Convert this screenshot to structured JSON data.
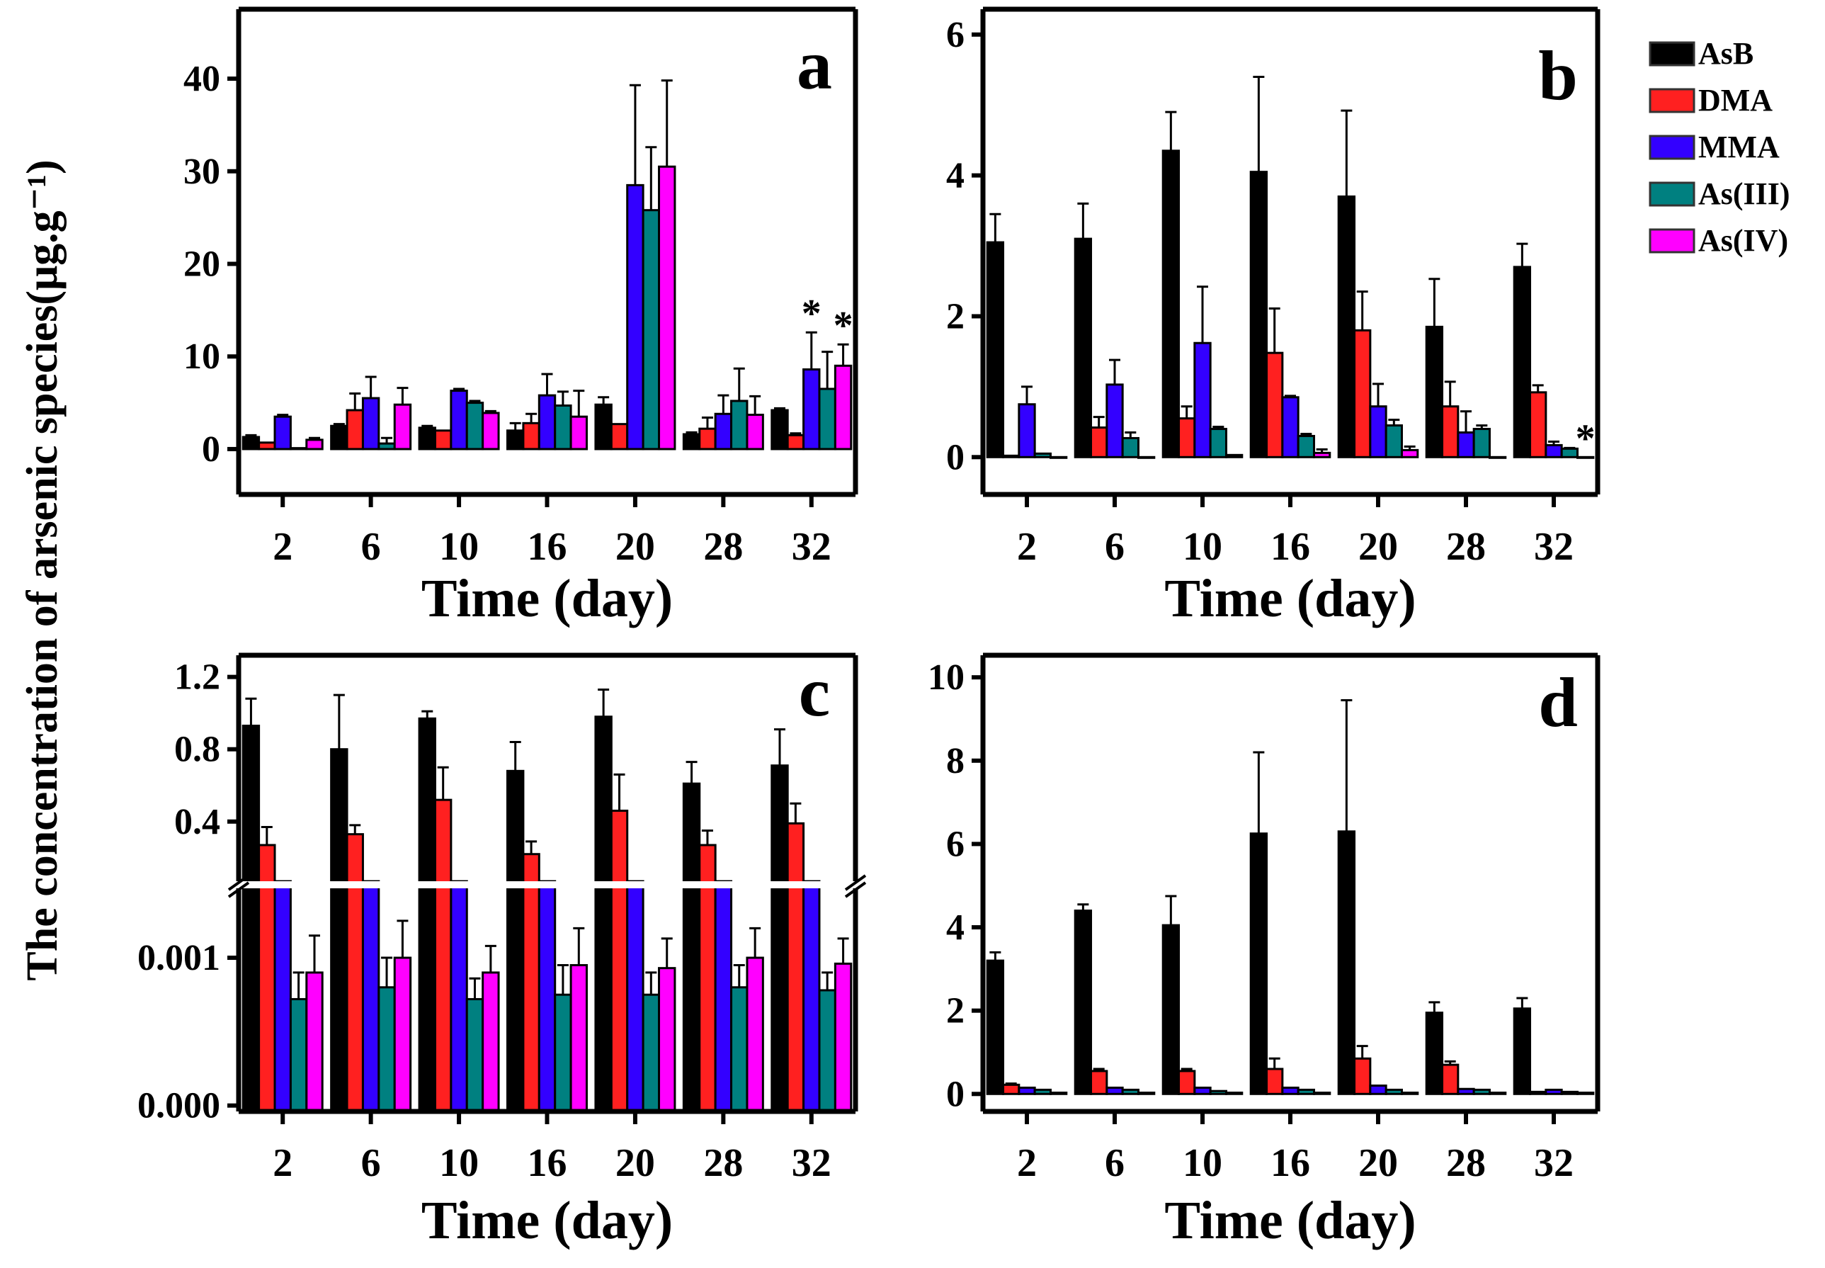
{
  "y_axis_label": "The concentration of arsenic species(μg.g⁻¹)",
  "colors": {
    "AsB": "#000000",
    "DMA": "#ff2020",
    "MMA": "#3300ff",
    "As(III)": "#008080",
    "As(IV)": "#ff00ff"
  },
  "legend": [
    "AsB",
    "DMA",
    "MMA",
    "As(III)",
    "As(IV)"
  ],
  "chart_data": [
    {
      "type": "bar",
      "panel": "a",
      "xlabel": "Time (day)",
      "ylim": [
        -4.9,
        47.5
      ],
      "yticks": [
        0,
        10,
        20,
        30,
        40
      ],
      "ytick_labels": [
        "0",
        "10",
        "20",
        "30",
        "40"
      ],
      "categories": [
        "2",
        "6",
        "10",
        "16",
        "20",
        "28",
        "32"
      ],
      "series": [
        {
          "name": "AsB",
          "values": [
            1.3,
            2.5,
            2.3,
            2.0,
            4.8,
            1.6,
            4.2
          ],
          "errors": [
            0.2,
            0.2,
            0.2,
            0.8,
            0.8,
            0.2,
            0.2
          ]
        },
        {
          "name": "DMA",
          "values": [
            0.7,
            4.2,
            2.0,
            2.8,
            2.7,
            2.2,
            1.5
          ],
          "errors": [
            0,
            1.8,
            0,
            1.0,
            0,
            1.2,
            0.2
          ]
        },
        {
          "name": "MMA",
          "values": [
            3.5,
            5.5,
            6.3,
            5.8,
            28.5,
            3.8,
            8.6
          ],
          "errors": [
            0.2,
            2.3,
            0.2,
            2.3,
            10.8,
            2.0,
            4.0
          ]
        },
        {
          "name": "As(III)",
          "values": [
            0.1,
            0.6,
            5.0,
            4.7,
            25.8,
            5.2,
            6.5
          ],
          "errors": [
            0,
            0.6,
            0.2,
            1.5,
            6.8,
            3.5,
            4.0
          ]
        },
        {
          "name": "As(IV)",
          "values": [
            1.0,
            4.8,
            3.9,
            3.5,
            30.5,
            3.7,
            9.0
          ],
          "errors": [
            0.2,
            1.8,
            0.2,
            2.8,
            9.3,
            2.0,
            2.3
          ]
        }
      ],
      "annotations": [
        {
          "text": "*",
          "category": "32",
          "series": "MMA"
        },
        {
          "text": "*",
          "category": "32",
          "series": "As(IV)"
        }
      ]
    },
    {
      "type": "bar",
      "panel": "b",
      "xlabel": "Time (day)",
      "ylim": [
        -0.53,
        6.36
      ],
      "yticks": [
        0,
        2,
        4,
        6
      ],
      "ytick_labels": [
        "0",
        "2",
        "4",
        "6"
      ],
      "categories": [
        "2",
        "6",
        "10",
        "16",
        "20",
        "28",
        "32"
      ],
      "series": [
        {
          "name": "AsB",
          "values": [
            3.05,
            3.1,
            4.35,
            4.05,
            3.7,
            1.85,
            2.7
          ],
          "errors": [
            0.4,
            0.5,
            0.55,
            1.35,
            1.22,
            0.68,
            0.33
          ]
        },
        {
          "name": "DMA",
          "values": [
            0.02,
            0.42,
            0.55,
            1.48,
            1.8,
            0.72,
            0.92
          ],
          "errors": [
            0,
            0.15,
            0.17,
            0.63,
            0.55,
            0.35,
            0.1
          ]
        },
        {
          "name": "MMA",
          "values": [
            0.75,
            1.03,
            1.62,
            0.85,
            0.72,
            0.35,
            0.17
          ],
          "errors": [
            0.25,
            0.35,
            0.8,
            0.02,
            0.32,
            0.3,
            0.05
          ]
        },
        {
          "name": "As(III)",
          "values": [
            0.05,
            0.27,
            0.4,
            0.3,
            0.45,
            0.4,
            0.12
          ],
          "errors": [
            0,
            0.08,
            0.03,
            0.03,
            0.08,
            0.05,
            0.01
          ]
        },
        {
          "name": "As(IV)",
          "values": [
            0.0,
            0.0,
            0.03,
            0.06,
            0.1,
            0.0,
            0.0
          ],
          "errors": [
            0,
            0,
            0,
            0.05,
            0.05,
            0,
            0
          ]
        }
      ],
      "annotations": [
        {
          "text": "*",
          "category": "32",
          "series": "As(IV)"
        }
      ]
    },
    {
      "type": "bar",
      "panel": "c",
      "xlabel": "Time (day)",
      "broken_axis": true,
      "ylim_lower": [
        -4e-05,
        0.00147
      ],
      "ylim_upper": [
        0.07,
        1.32
      ],
      "yticks": [
        0.0,
        0.001,
        0.4,
        0.8,
        1.2
      ],
      "ytick_labels": [
        "0.000",
        "0.001",
        "0.4",
        "0.8",
        "1.2"
      ],
      "categories": [
        "2",
        "6",
        "10",
        "16",
        "20",
        "28",
        "32"
      ],
      "series": [
        {
          "name": "AsB",
          "values": [
            0.93,
            0.8,
            0.97,
            0.68,
            0.98,
            0.61,
            0.71
          ],
          "errors": [
            0.15,
            0.3,
            0.04,
            0.16,
            0.15,
            0.12,
            0.2
          ]
        },
        {
          "name": "DMA",
          "values": [
            0.27,
            0.33,
            0.52,
            0.22,
            0.46,
            0.27,
            0.39
          ],
          "errors": [
            0.1,
            0.05,
            0.18,
            0.07,
            0.2,
            0.08,
            0.11
          ]
        },
        {
          "name": "MMA",
          "values": [
            0.01,
            0.01,
            0.01,
            0.01,
            0.01,
            0.01,
            0.01
          ],
          "errors": [
            0,
            0,
            0,
            0,
            0,
            0,
            0
          ]
        },
        {
          "name": "As(III)",
          "values": [
            0.00072,
            0.0008,
            0.00072,
            0.00075,
            0.00075,
            0.0008,
            0.00078
          ],
          "errors": [
            0.00018,
            0.0002,
            0.00014,
            0.0002,
            0.00015,
            0.00015,
            0.00012
          ]
        },
        {
          "name": "As(IV)",
          "values": [
            0.0009,
            0.001,
            0.0009,
            0.00095,
            0.00093,
            0.001,
            0.00096
          ],
          "errors": [
            0.00025,
            0.00025,
            0.00018,
            0.00025,
            0.0002,
            0.0002,
            0.00017
          ]
        }
      ],
      "annotations": []
    },
    {
      "type": "bar",
      "panel": "d",
      "xlabel": "Time (day)",
      "ylim": [
        -0.42,
        10.53
      ],
      "yticks": [
        0,
        2,
        4,
        6,
        8,
        10
      ],
      "ytick_labels": [
        "0",
        "2",
        "4",
        "6",
        "8",
        "10"
      ],
      "categories": [
        "2",
        "6",
        "10",
        "16",
        "20",
        "28",
        "32"
      ],
      "series": [
        {
          "name": "AsB",
          "values": [
            3.2,
            4.4,
            4.05,
            6.25,
            6.3,
            1.95,
            2.05
          ],
          "errors": [
            0.2,
            0.15,
            0.7,
            1.95,
            3.15,
            0.25,
            0.25
          ]
        },
        {
          "name": "DMA",
          "values": [
            0.22,
            0.55,
            0.55,
            0.6,
            0.85,
            0.7,
            0.05
          ],
          "errors": [
            0.03,
            0.05,
            0.05,
            0.25,
            0.3,
            0.08,
            0
          ]
        },
        {
          "name": "MMA",
          "values": [
            0.15,
            0.15,
            0.15,
            0.15,
            0.2,
            0.12,
            0.1
          ],
          "errors": [
            0,
            0,
            0,
            0,
            0,
            0,
            0
          ]
        },
        {
          "name": "As(III)",
          "values": [
            0.1,
            0.1,
            0.07,
            0.1,
            0.1,
            0.1,
            0.05
          ],
          "errors": [
            0,
            0,
            0,
            0,
            0,
            0,
            0
          ]
        },
        {
          "name": "As(IV)",
          "values": [
            0.03,
            0.03,
            0.03,
            0.03,
            0.03,
            0.03,
            0.03
          ],
          "errors": [
            0,
            0,
            0,
            0,
            0,
            0,
            0
          ]
        }
      ],
      "annotations": []
    }
  ]
}
